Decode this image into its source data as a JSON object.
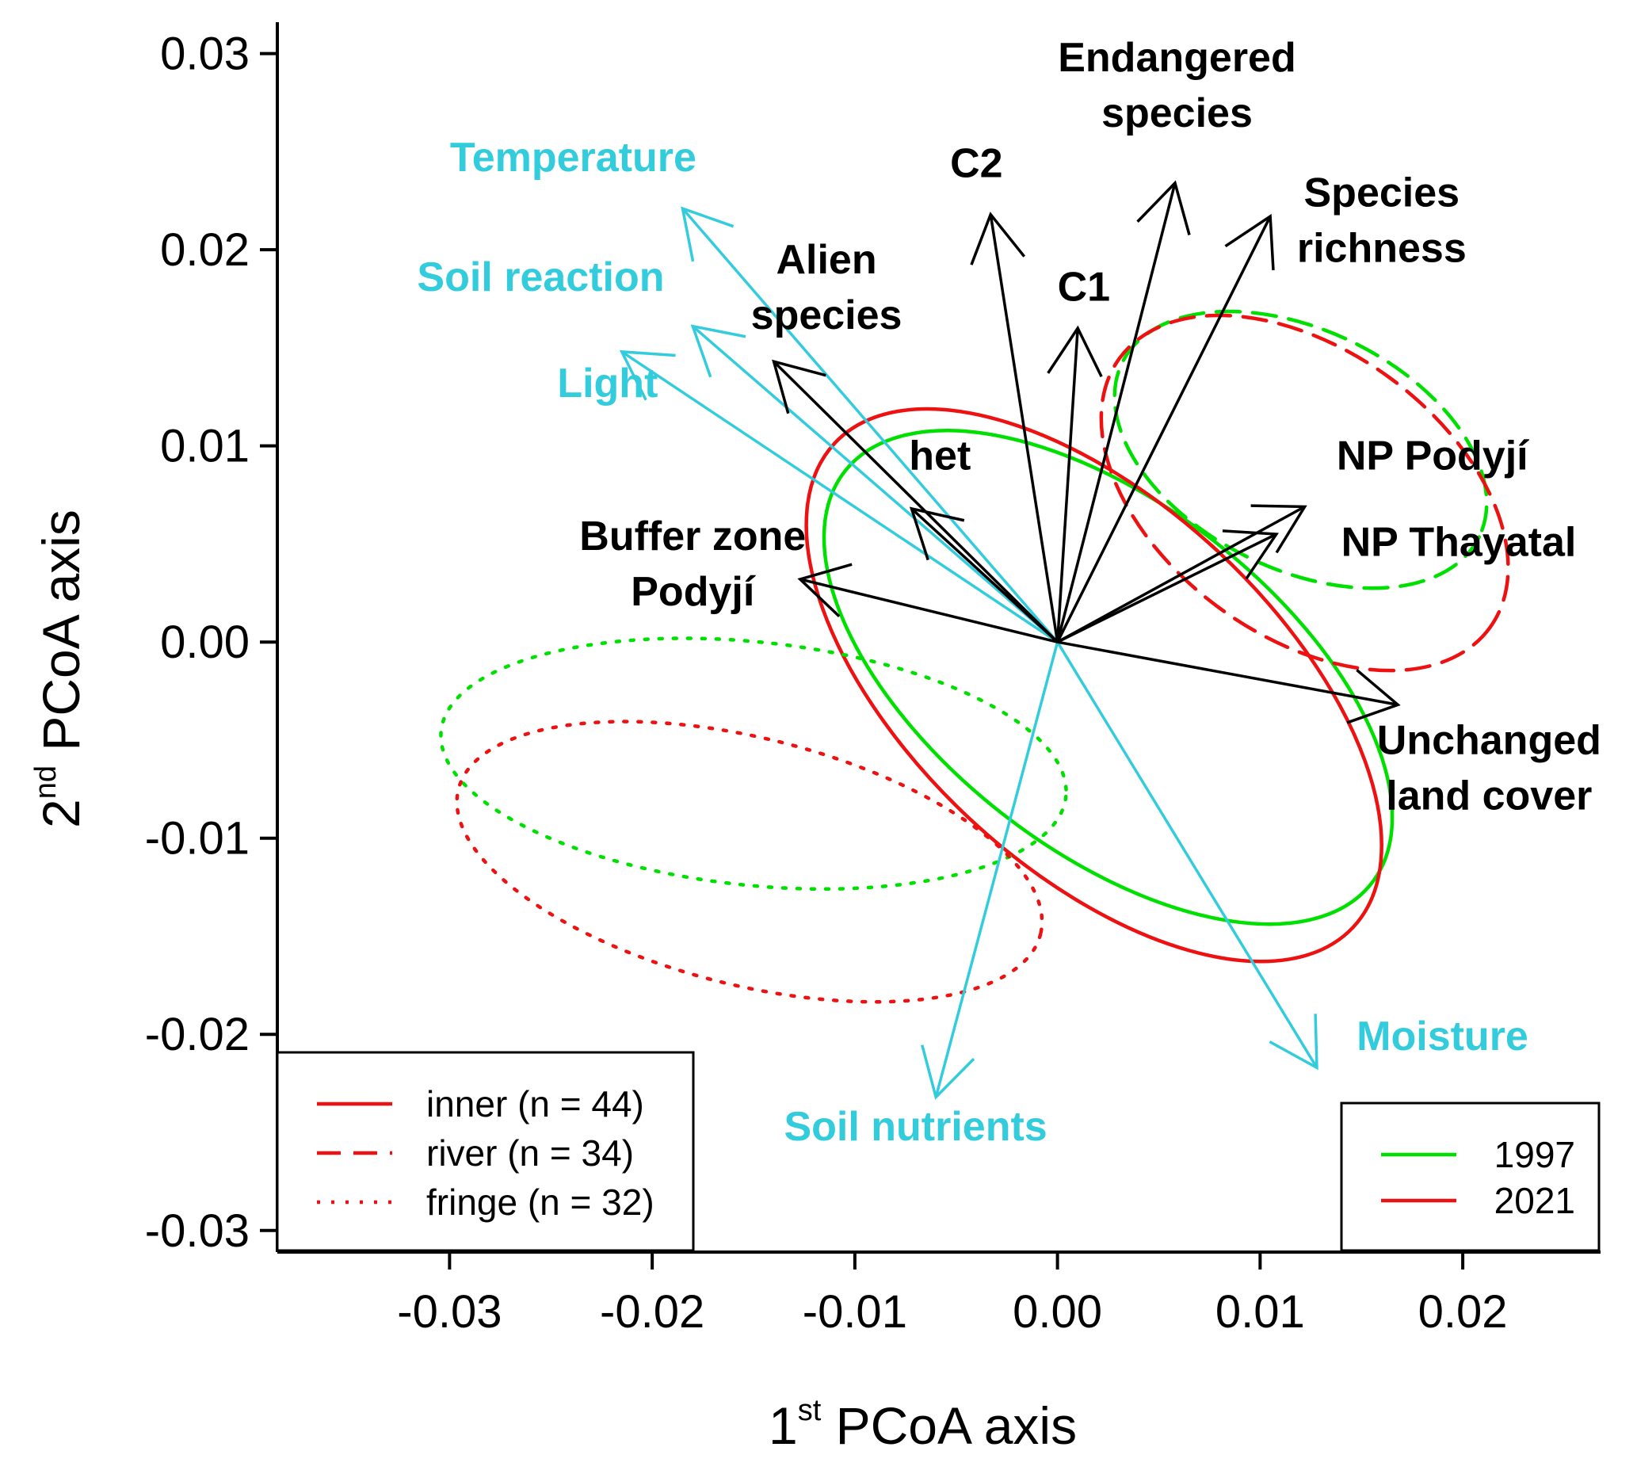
{
  "chart_data": {
    "type": "scatter",
    "subtype": "PCoA ordination biplot with group ellipses and fitted vectors",
    "xlabel": {
      "ordinal": "1",
      "suffix": "st",
      "text": "PCoA axis"
    },
    "ylabel": {
      "ordinal": "2",
      "suffix": "nd",
      "text": "PCoA axis"
    },
    "xlim": [
      -0.0385,
      0.0268
    ],
    "ylim": [
      -0.0311,
      0.0316
    ],
    "xticks": [
      -0.03,
      -0.02,
      -0.01,
      0.0,
      0.01,
      0.02
    ],
    "xtick_labels": [
      "-0.03",
      "-0.02",
      "-0.01",
      "0.00",
      "0.01",
      "0.02"
    ],
    "yticks": [
      -0.03,
      -0.02,
      -0.01,
      0.0,
      0.01,
      0.02,
      0.03
    ],
    "ytick_labels": [
      "-0.03",
      "-0.02",
      "-0.01",
      "0.00",
      "0.01",
      "0.02",
      "0.03"
    ],
    "colors": {
      "year_1997": "#00e000",
      "year_2021": "#ee1111",
      "environment": "#33ccdd",
      "factor": "#000000"
    },
    "ellipses": [
      {
        "group": "inner",
        "year": "1997",
        "linetype": "solid",
        "cx": 0.0025,
        "cy": -0.0018,
        "a": 0.0165,
        "b": 0.0088,
        "angle_deg": -38
      },
      {
        "group": "inner",
        "year": "2021",
        "linetype": "solid",
        "cx": 0.0018,
        "cy": -0.0022,
        "a": 0.0175,
        "b": 0.0093,
        "angle_deg": -43
      },
      {
        "group": "river",
        "year": "1997",
        "linetype": "dashed",
        "cx": 0.012,
        "cy": 0.0098,
        "a": 0.0098,
        "b": 0.0061,
        "angle_deg": -26
      },
      {
        "group": "river",
        "year": "2021",
        "linetype": "dashed",
        "cx": 0.0122,
        "cy": 0.0076,
        "a": 0.0113,
        "b": 0.0073,
        "angle_deg": -36
      },
      {
        "group": "fringe",
        "year": "1997",
        "linetype": "dotted",
        "cx": -0.015,
        "cy": -0.0062,
        "a": 0.0155,
        "b": 0.0062,
        "angle_deg": -6
      },
      {
        "group": "fringe",
        "year": "2021",
        "linetype": "dotted",
        "cx": -0.0152,
        "cy": -0.0112,
        "a": 0.0148,
        "b": 0.0063,
        "angle_deg": -14
      }
    ],
    "vectors": [
      {
        "label": "Temperature",
        "kind": "environment",
        "x": -0.0185,
        "y": 0.0221
      },
      {
        "label": "Soil reaction",
        "kind": "environment",
        "x": -0.018,
        "y": 0.0161
      },
      {
        "label": "Light",
        "kind": "environment",
        "x": -0.0215,
        "y": 0.0148
      },
      {
        "label": "Soil nutrients",
        "kind": "environment",
        "x": -0.006,
        "y": -0.0232
      },
      {
        "label": "Moisture",
        "kind": "environment",
        "x": 0.0128,
        "y": -0.0217
      },
      {
        "label": "C2",
        "kind": "factor",
        "x": -0.0033,
        "y": 0.0218
      },
      {
        "label": "C1",
        "kind": "factor",
        "x": 0.001,
        "y": 0.016
      },
      {
        "label": "Endangered species",
        "kind": "factor",
        "x": 0.0058,
        "y": 0.0234
      },
      {
        "label": "Species richness",
        "kind": "factor",
        "x": 0.0105,
        "y": 0.0217
      },
      {
        "label": "Alien species",
        "kind": "factor",
        "x": -0.014,
        "y": 0.0143
      },
      {
        "label": "het",
        "kind": "factor",
        "x": -0.0072,
        "y": 0.0068
      },
      {
        "label": "Buffer zone Podyjí",
        "kind": "factor",
        "x": -0.0127,
        "y": 0.0032
      },
      {
        "label": "NP Podyjí",
        "kind": "factor",
        "x": 0.0122,
        "y": 0.0069
      },
      {
        "label": "NP Thayatal",
        "kind": "factor",
        "x": 0.0108,
        "y": 0.0055
      },
      {
        "label": "Unchanged land cover",
        "kind": "factor",
        "x": 0.0168,
        "y": -0.0032
      }
    ],
    "vector_labels": [
      {
        "lines": [
          "Temperature"
        ],
        "color": "#33ccdd",
        "x": -0.0239,
        "y": 0.024
      },
      {
        "lines": [
          "Soil reaction"
        ],
        "color": "#33ccdd",
        "x": -0.0255,
        "y": 0.0179
      },
      {
        "lines": [
          "Light"
        ],
        "color": "#33ccdd",
        "x": -0.0222,
        "y": 0.0125
      },
      {
        "lines": [
          "Soil nutrients"
        ],
        "color": "#33ccdd",
        "x": -0.007,
        "y": -0.0254
      },
      {
        "lines": [
          "Moisture"
        ],
        "color": "#33ccdd",
        "x": 0.019,
        "y": -0.0208
      },
      {
        "lines": [
          "C2"
        ],
        "color": "#000000",
        "x": -0.004,
        "y": 0.0237
      },
      {
        "lines": [
          "C1"
        ],
        "color": "#000000",
        "x": 0.0013,
        "y": 0.0174
      },
      {
        "lines": [
          "Endangered",
          "species"
        ],
        "color": "#000000",
        "x": 0.0059,
        "y": 0.0291
      },
      {
        "lines": [
          "Species",
          "richness"
        ],
        "color": "#000000",
        "x": 0.016,
        "y": 0.0222
      },
      {
        "lines": [
          "Alien",
          "species"
        ],
        "color": "#000000",
        "x": -0.0114,
        "y": 0.0188
      },
      {
        "lines": [
          "het"
        ],
        "color": "#000000",
        "x": -0.0058,
        "y": 0.0088
      },
      {
        "lines": [
          "Buffer zone",
          "Podyjí"
        ],
        "color": "#000000",
        "x": -0.018,
        "y": 0.0047
      },
      {
        "lines": [
          "NP Podyjí"
        ],
        "color": "#000000",
        "x": 0.0185,
        "y": 0.0088
      },
      {
        "lines": [
          "NP Thayatal"
        ],
        "color": "#000000",
        "x": 0.0198,
        "y": 0.0044
      },
      {
        "lines": [
          "Unchanged",
          "land cover"
        ],
        "color": "#000000",
        "x": 0.0213,
        "y": -0.0057
      }
    ],
    "legend_groups": {
      "position": "bottom-left",
      "entries": [
        {
          "label": "inner (n = 44)",
          "linetype": "solid",
          "color": "#ee1111"
        },
        {
          "label": "river (n = 34)",
          "linetype": "dashed",
          "color": "#ee1111"
        },
        {
          "label": "fringe (n = 32)",
          "linetype": "dotted",
          "color": "#ee1111"
        }
      ]
    },
    "legend_years": {
      "position": "bottom-right",
      "entries": [
        {
          "label": "1997",
          "linetype": "solid",
          "color": "#00e000"
        },
        {
          "label": "2021",
          "linetype": "solid",
          "color": "#ee1111"
        }
      ]
    }
  }
}
